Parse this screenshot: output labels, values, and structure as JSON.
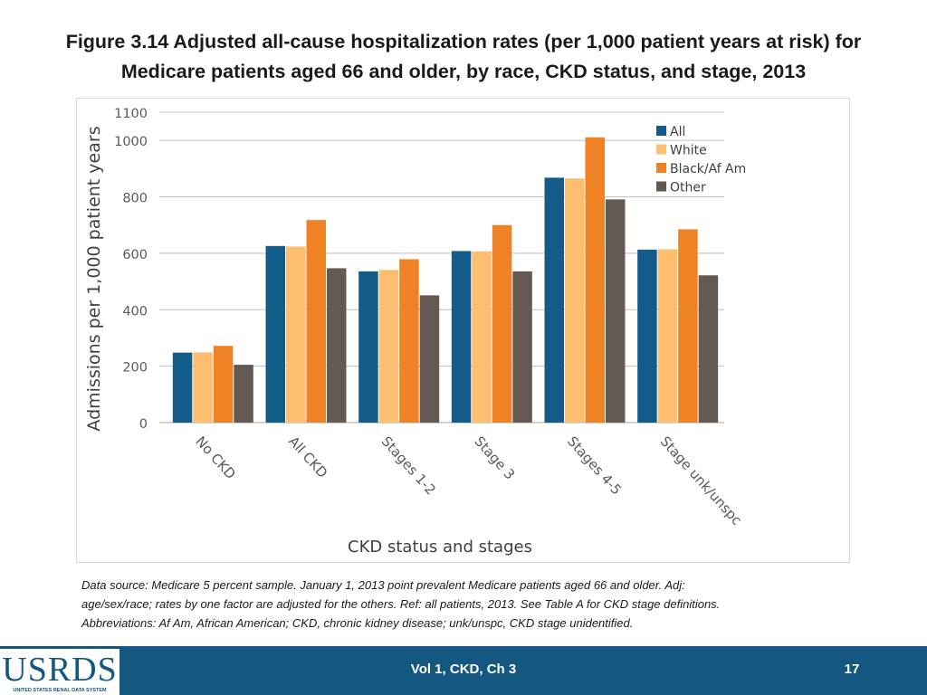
{
  "title_line1": "Figure 3.14  Adjusted all-cause hospitalization rates (per 1,000 patient years at risk) for",
  "title_line2": "Medicare patients aged 66 and older, by race, CKD status, and stage, 2013",
  "chart_data": {
    "type": "bar",
    "xlabel": "CKD status and stages",
    "ylabel": "Admissions per 1,000 patient years",
    "ylim": [
      0,
      1100
    ],
    "yticks": [
      0,
      200,
      400,
      600,
      800,
      1000,
      1100
    ],
    "grid": true,
    "legend_position": "top-right",
    "categories": [
      "No CKD",
      "All CKD",
      "Stages 1-2",
      "Stage 3",
      "Stages 4-5",
      "Stage unk/unspc"
    ],
    "series": [
      {
        "name": "All",
        "color": "#135b88",
        "values": [
          248,
          626,
          536,
          608,
          868,
          613
        ]
      },
      {
        "name": "White",
        "color": "#fdbf6f",
        "values": [
          249,
          624,
          541,
          607,
          865,
          614
        ]
      },
      {
        "name": "Black/Af Am",
        "color": "#ee8224",
        "values": [
          272,
          718,
          579,
          700,
          1011,
          685
        ]
      },
      {
        "name": "Other",
        "color": "#655a53",
        "values": [
          205,
          547,
          451,
          536,
          791,
          522
        ]
      }
    ]
  },
  "footnote": {
    "line1": "Data source: Medicare 5 percent sample. January 1, 2013 point prevalent Medicare patients aged 66 and older. Adj:",
    "line2": "age/sex/race; rates by one factor are adjusted for the others. Ref: all patients, 2013. See Table A for CKD stage definitions.",
    "line3": "Abbreviations: Af Am, African American; CKD, chronic kidney disease; unk/unspc, CKD stage unidentified."
  },
  "footer": {
    "logo_text": "USRDS",
    "logo_subtext": "UNITED STATES RENAL DATA SYSTEM",
    "label": "Vol 1, CKD, Ch 3",
    "page_number": "17"
  }
}
